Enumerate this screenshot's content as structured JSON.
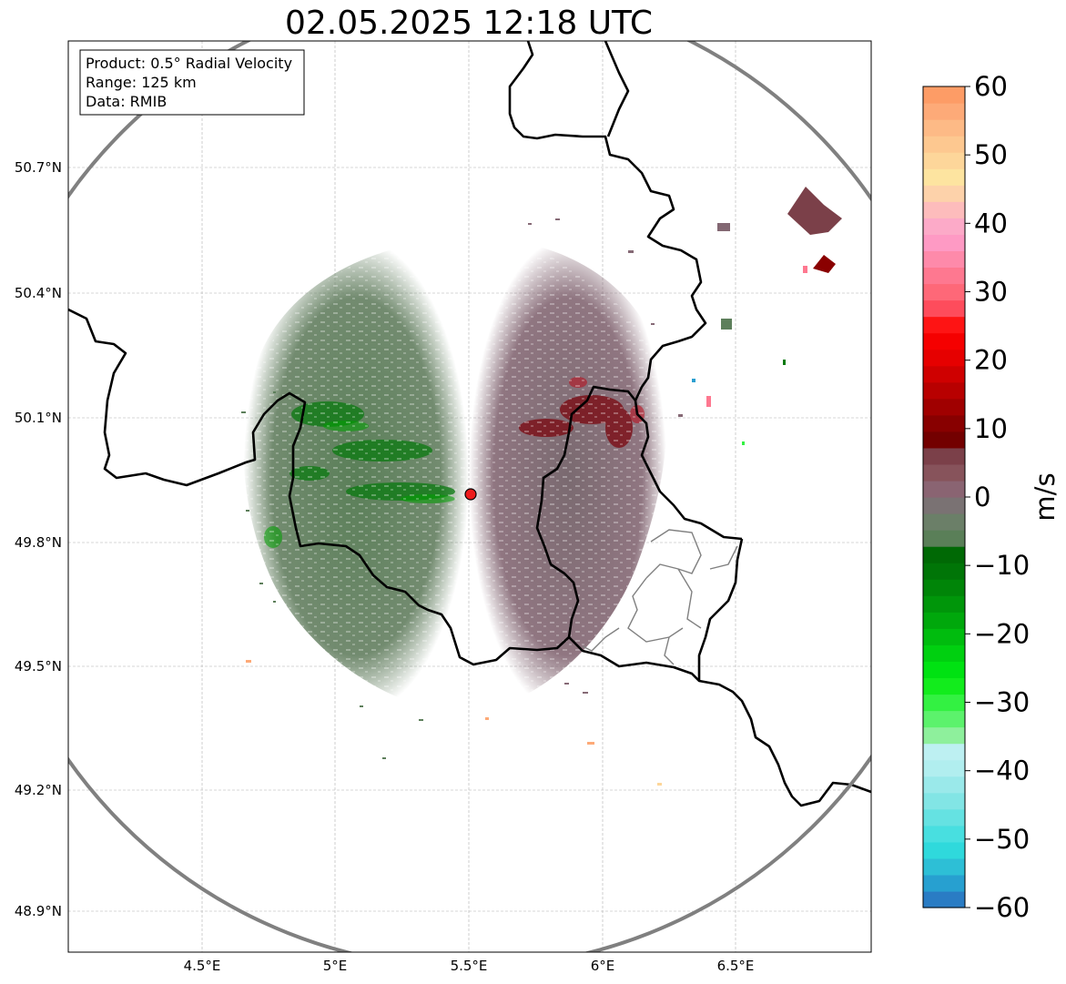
{
  "title": "02.05.2025 12:18 UTC",
  "info_box": {
    "product": "Product: 0.5° Radial Velocity",
    "range": "Range: 125 km",
    "data": "Data: RMIB"
  },
  "axes": {
    "lon_ticks": [
      "4.5°E",
      "5°E",
      "5.5°E",
      "6°E",
      "6.5°E"
    ],
    "lat_ticks": [
      "50.7°N",
      "50.4°N",
      "50.1°N",
      "49.8°N",
      "49.5°N",
      "49.2°N",
      "48.9°N"
    ]
  },
  "colorbar": {
    "label": "m/s",
    "tick_labels": [
      "60",
      "50",
      "40",
      "30",
      "20",
      "10",
      "0",
      "−10",
      "−20",
      "−30",
      "−40",
      "−50",
      "−60"
    ],
    "range": [
      -60,
      60
    ],
    "colors": [
      "#2a7cc4",
      "#27a0d0",
      "#2dbfd6",
      "#2fd9dc",
      "#48dfe0",
      "#65e2e2",
      "#82e5e5",
      "#9ae9ea",
      "#b1eeef",
      "#bdf0f2",
      "#8ef09c",
      "#5cf26c",
      "#33f142",
      "#12ec1c",
      "#00e212",
      "#00d010",
      "#00bc0e",
      "#00a80c",
      "#00960a",
      "#008508",
      "#007507",
      "#006905",
      "#5a7f58",
      "#6b7f68",
      "#7a7273",
      "#8a6472",
      "#87535b",
      "#7b4049",
      "#730000",
      "#880000",
      "#a00000",
      "#b80000",
      "#cf0000",
      "#e60000",
      "#f50000",
      "#fe1414",
      "#fe4c5c",
      "#fe6878",
      "#fe7890",
      "#fe8aaa",
      "#fe9ac4",
      "#fcaac8",
      "#fdbcbc",
      "#fdd2aa",
      "#fde4a0",
      "#fdd69a",
      "#fdc890",
      "#fdba86",
      "#fdaa78",
      "#fd9c66"
    ]
  },
  "radar": {
    "site_marker": "radar-site",
    "range_ring_color": "#808080",
    "approaching_color": "#5d7f5b",
    "receding_color": "#836873",
    "strong_inbound_color": "#006b00",
    "strong_outbound_color": "#7a0000"
  }
}
